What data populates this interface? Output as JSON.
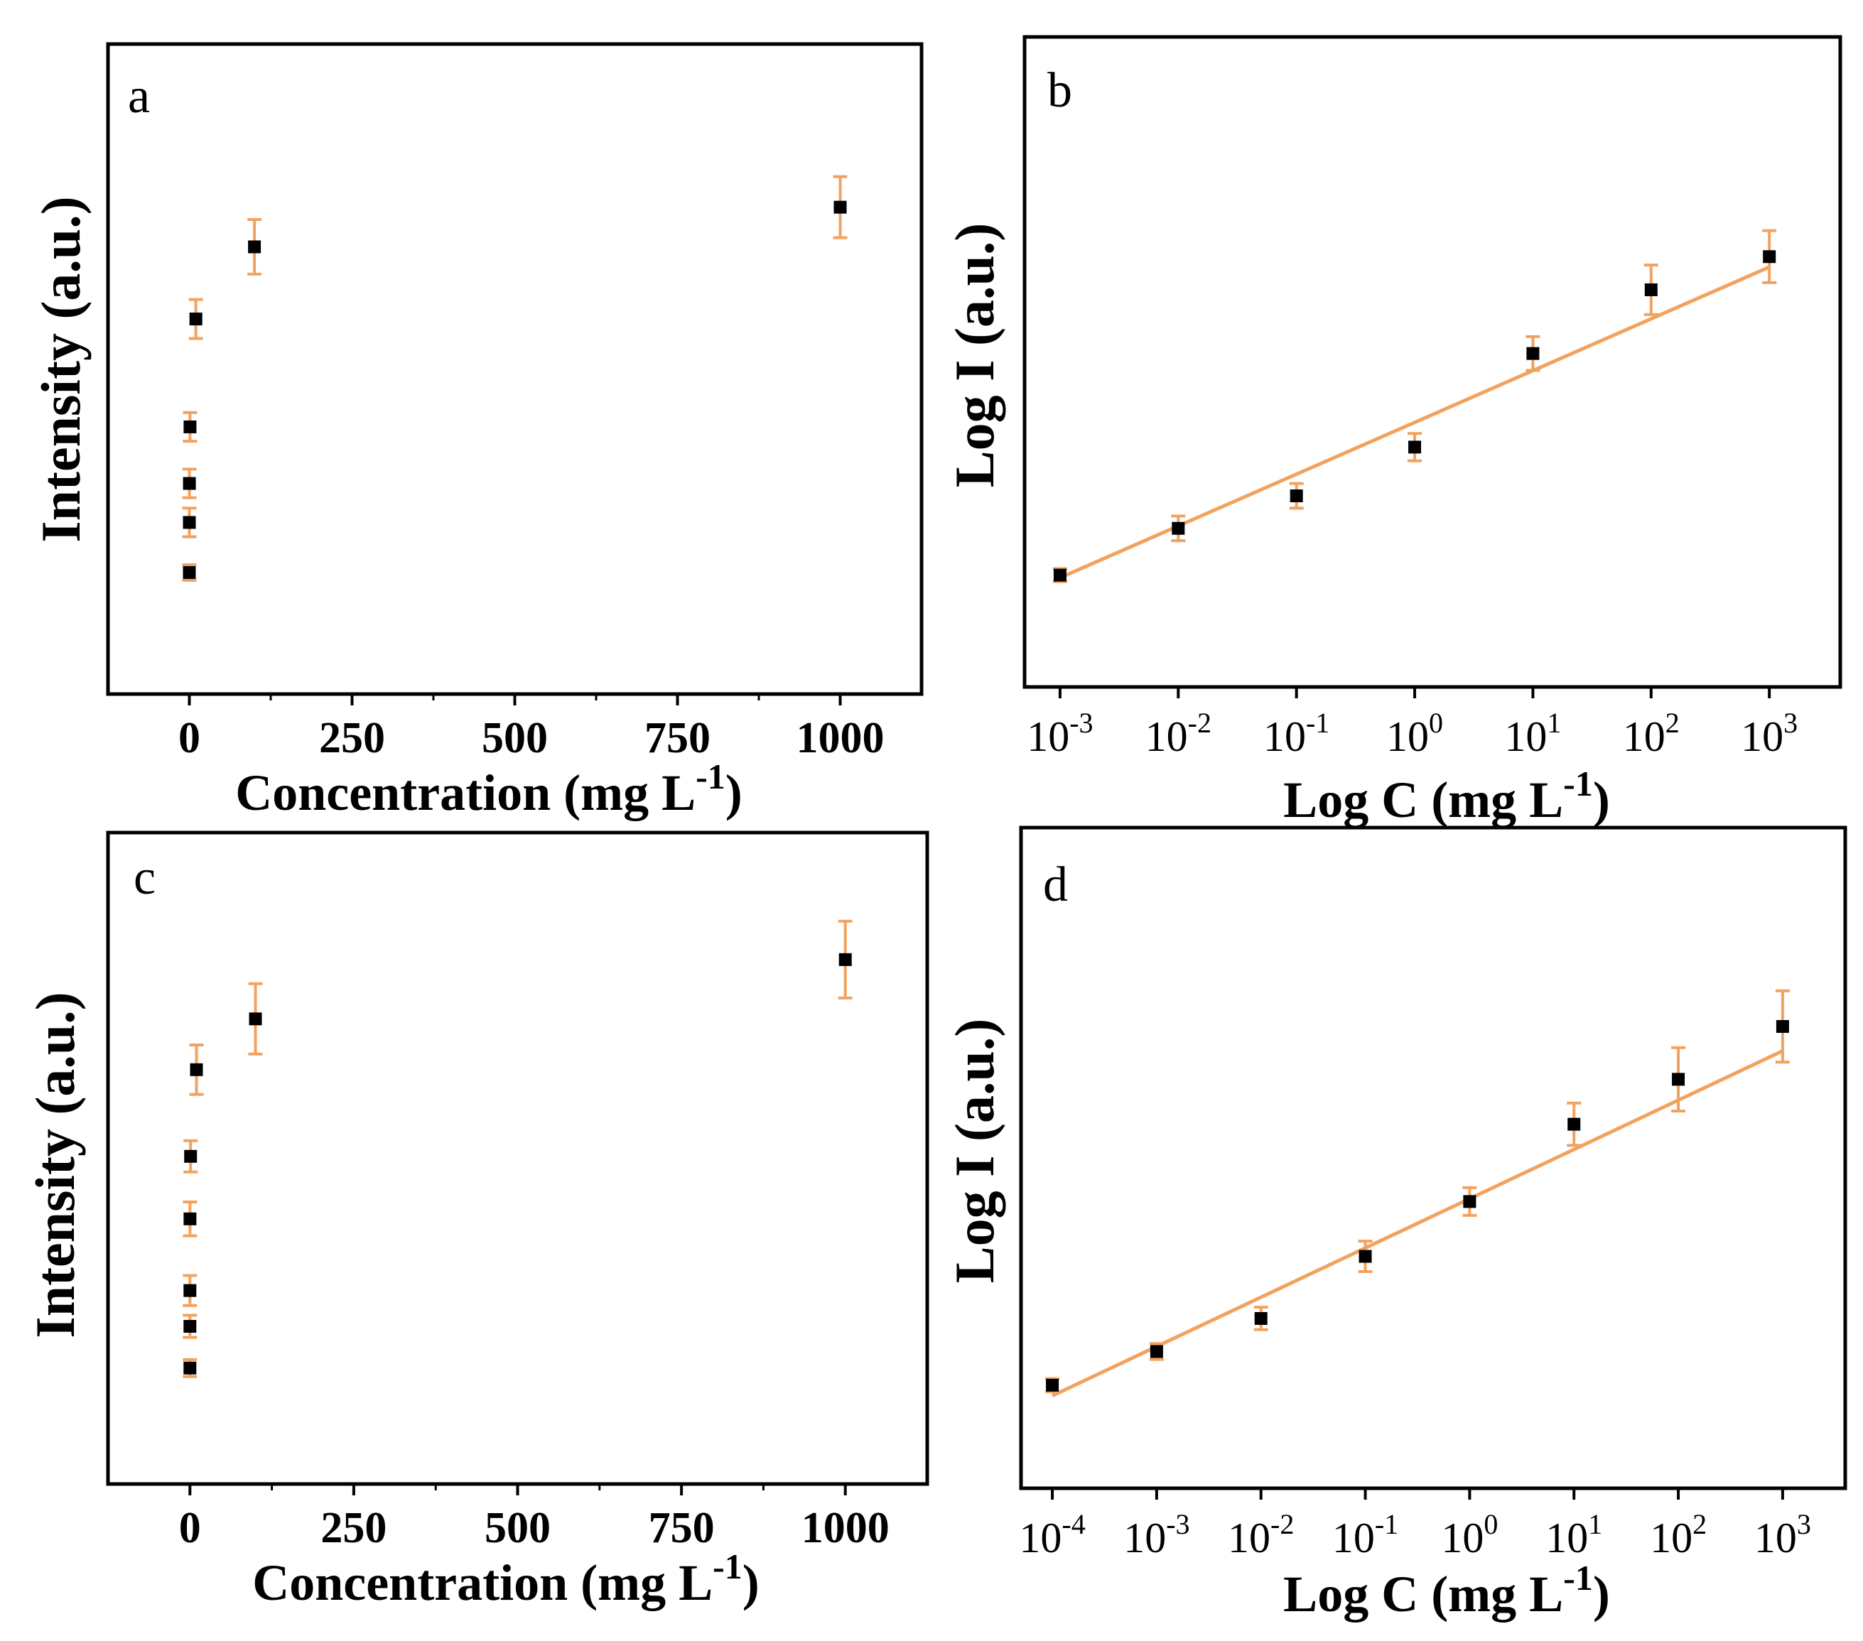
{
  "colors": {
    "marker": "#000000",
    "errorbar": "#f2a25f",
    "fit": "#f2a25f",
    "frame": "#000000"
  },
  "chart_data": [
    {
      "panel": "a",
      "type": "scatter",
      "xlabel": {
        "text": "Concentration (mg L",
        "sup": "-1",
        "close": ")"
      },
      "ylabel": "Intensity (a.u.)",
      "xlim": [
        -125,
        1125
      ],
      "ylim": [
        0,
        100
      ],
      "xticks": [
        0,
        250,
        500,
        750,
        1000
      ],
      "xtick_labels": [
        "0",
        "250",
        "500",
        "750",
        "1000"
      ],
      "points": [
        {
          "x": 0.001,
          "y": 18.7,
          "err": 1.2
        },
        {
          "x": 0.01,
          "y": 26.4,
          "err": 2.2
        },
        {
          "x": 0.1,
          "y": 32.4,
          "err": 2.2
        },
        {
          "x": 1,
          "y": 41.1,
          "err": 2.2
        },
        {
          "x": 10,
          "y": 57.7,
          "err": 3.0
        },
        {
          "x": 100,
          "y": 68.8,
          "err": 4.2
        },
        {
          "x": 1000,
          "y": 74.9,
          "err": 4.7
        }
      ]
    },
    {
      "panel": "b",
      "type": "scatter",
      "xscale": "log",
      "fit": "linear",
      "xlabel": {
        "text": "Log C (mg L",
        "sup": "-1",
        "close": ")"
      },
      "ylabel": "Log I (a.u.)",
      "xlim": [
        -3.3,
        3.6
      ],
      "ylim": [
        0,
        100
      ],
      "xtick_exponents": [
        "-3",
        "-2",
        "-1",
        "0",
        "1",
        "2",
        "3"
      ],
      "xtick_base": "10",
      "fit_line": {
        "x1": -3,
        "y1": 16.8,
        "x2": 3,
        "y2": 64.6
      },
      "points": [
        {
          "x": -3,
          "y": 17.2,
          "err": 1.0
        },
        {
          "x": -2,
          "y": 24.4,
          "err": 1.9
        },
        {
          "x": -1,
          "y": 29.4,
          "err": 1.9
        },
        {
          "x": 0,
          "y": 36.9,
          "err": 2.1
        },
        {
          "x": 1,
          "y": 51.3,
          "err": 2.6
        },
        {
          "x": 2,
          "y": 61.1,
          "err": 3.8
        },
        {
          "x": 3,
          "y": 66.2,
          "err": 4.0
        }
      ]
    },
    {
      "panel": "c",
      "type": "scatter",
      "xlabel": {
        "text": "Concentration (mg L",
        "sup": "-1",
        "close": ")"
      },
      "ylabel": "Intensity (a.u.)",
      "xlim": [
        -125,
        1125
      ],
      "ylim": [
        0,
        100
      ],
      "xticks": [
        0,
        250,
        500,
        750,
        1000
      ],
      "xtick_labels": [
        "0",
        "250",
        "500",
        "750",
        "1000"
      ],
      "points": [
        {
          "x": 0.0001,
          "y": 17.8,
          "err": 1.3
        },
        {
          "x": 0.001,
          "y": 24.2,
          "err": 1.7
        },
        {
          "x": 0.01,
          "y": 29.7,
          "err": 2.3
        },
        {
          "x": 0.1,
          "y": 40.7,
          "err": 2.6
        },
        {
          "x": 1,
          "y": 50.3,
          "err": 2.4
        },
        {
          "x": 10,
          "y": 63.6,
          "err": 3.8
        },
        {
          "x": 100,
          "y": 71.4,
          "err": 5.4
        },
        {
          "x": 1000,
          "y": 80.5,
          "err": 5.9
        }
      ]
    },
    {
      "panel": "d",
      "type": "scatter",
      "xscale": "log",
      "fit": "linear",
      "xlabel": {
        "text": "Log C (mg L",
        "sup": "-1",
        "close": ")"
      },
      "ylabel": "Log I (a.u.)",
      "xlim": [
        -4.3,
        3.6
      ],
      "ylim": [
        0,
        100
      ],
      "xtick_exponents": [
        "-4",
        "-3",
        "-2",
        "-1",
        "0",
        "1",
        "2",
        "3"
      ],
      "xtick_base": "10",
      "fit_line": {
        "x1": -4,
        "y1": 14.0,
        "x2": 3,
        "y2": 66.2
      },
      "points": [
        {
          "x": -4,
          "y": 15.6,
          "err": 1.0
        },
        {
          "x": -3,
          "y": 20.7,
          "err": 1.2
        },
        {
          "x": -2,
          "y": 25.7,
          "err": 1.7
        },
        {
          "x": -1,
          "y": 35.1,
          "err": 2.3
        },
        {
          "x": 0,
          "y": 43.4,
          "err": 2.1
        },
        {
          "x": 1,
          "y": 55.1,
          "err": 3.2
        },
        {
          "x": 2,
          "y": 61.9,
          "err": 4.8
        },
        {
          "x": 3,
          "y": 69.9,
          "err": 5.4
        }
      ]
    }
  ]
}
